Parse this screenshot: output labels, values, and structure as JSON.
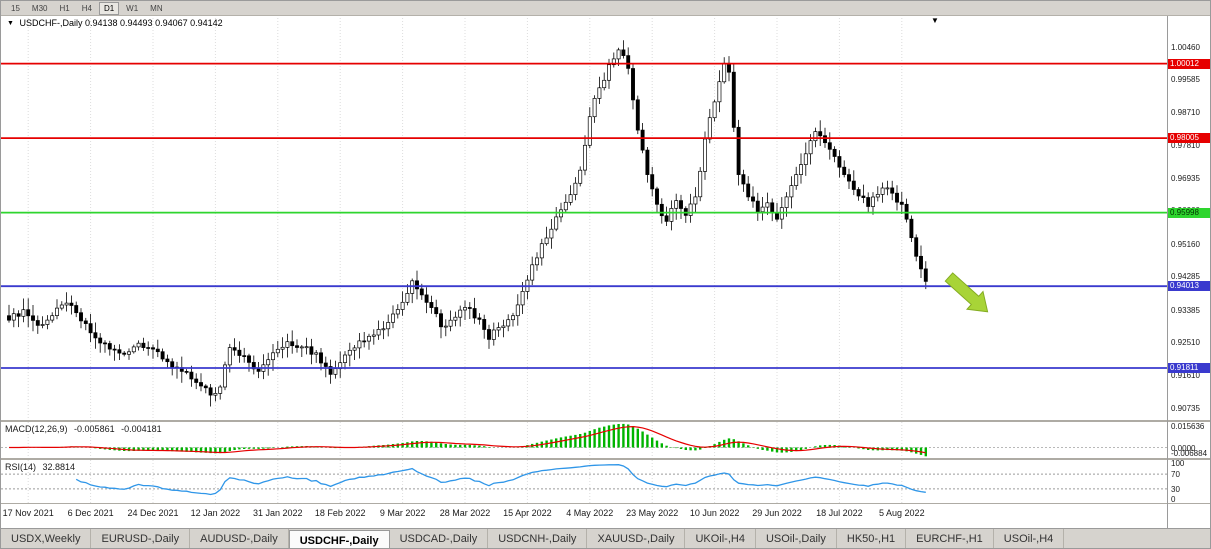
{
  "window": {
    "toolbar": {
      "timeframes": [
        "15",
        "M30",
        "H1",
        "H4",
        "D1",
        "W1",
        "MN"
      ],
      "active_timeframe": "D1"
    },
    "tabs": {
      "items": [
        "USDX,Weekly",
        "EURUSD-,Daily",
        "AUDUSD-,Daily",
        "USDCHF-,Daily",
        "USDCAD-,Daily",
        "USDCNH-,Daily",
        "XAUUSD-,Daily",
        "UKOil-,H4",
        "USOil-,Daily",
        "HK50-,H1",
        "EURCHF-,H1",
        "USOil-,H4"
      ],
      "active": "USDCHF-,Daily"
    }
  },
  "chart": {
    "ohlc_line": {
      "marker": "▼",
      "symbol": "USDCHF-,Daily",
      "open": "0.94138",
      "high": "0.94493",
      "low": "0.94067",
      "close": "0.94142"
    },
    "price_axis": {
      "labels": [
        "1.00460",
        "0.99585",
        "0.98710",
        "0.97810",
        "0.96935",
        "0.96060",
        "0.95160",
        "0.94285",
        "0.93385",
        "0.92510",
        "0.91610",
        "0.90735"
      ]
    },
    "levels": [
      {
        "price": 1.00012,
        "label": "1.00012",
        "color": "#e60000",
        "text_color": "#ffffff"
      },
      {
        "price": 0.98005,
        "label": "0.98005",
        "color": "#e60000",
        "text_color": "#ffffff"
      },
      {
        "price": 0.95998,
        "label": "0.95998",
        "color": "#2ed52e",
        "text_color": "#003300"
      },
      {
        "price": 0.94013,
        "label": "0.94013",
        "color": "#3a3ace",
        "text_color": "#ffffff"
      },
      {
        "price": 0.91811,
        "label": "0.91811",
        "color": "#3a3ace",
        "text_color": "#ffffff"
      }
    ],
    "macd": {
      "label": "MACD(12,26,9)",
      "value_main": "-0.005861",
      "value_signal": "-0.004181",
      "axis_top": "0.015636",
      "axis_zero": "0.0000",
      "axis_bottom": "-0.006884",
      "histogram_color": "#00b400",
      "signal_color": "#e60000"
    },
    "rsi": {
      "label": "RSI(14)",
      "value": "32.8814",
      "axis_labels": [
        "100",
        "70",
        "30",
        "0"
      ],
      "level_lines": [
        70,
        30
      ],
      "line_color": "#2f96e8"
    }
  },
  "chart_data": {
    "type": "candlestick",
    "symbol": "USDCHF",
    "timeframe": "Daily",
    "bars": 192,
    "price_range": [
      0.9041,
      1.0132
    ],
    "dates": [
      "17 Nov 2021",
      "6 Dec 2021",
      "24 Dec 2021",
      "12 Jan 2022",
      "31 Jan 2022",
      "18 Feb 2022",
      "9 Mar 2022",
      "28 Mar 2022",
      "15 Apr 2022",
      "4 May 2022",
      "23 May 2022",
      "10 Jun 2022",
      "29 Jun 2022",
      "18 Jul 2022",
      "5 Aug 2022"
    ],
    "date_tick_bars": [
      4,
      17,
      30,
      43,
      56,
      69,
      82,
      95,
      108,
      121,
      134,
      147,
      160,
      173,
      186
    ],
    "close_anchors": [
      [
        0,
        0.931
      ],
      [
        3,
        0.9338
      ],
      [
        6,
        0.9296
      ],
      [
        9,
        0.9322
      ],
      [
        12,
        0.9356
      ],
      [
        15,
        0.9308
      ],
      [
        18,
        0.9262
      ],
      [
        21,
        0.9232
      ],
      [
        24,
        0.9218
      ],
      [
        27,
        0.9248
      ],
      [
        30,
        0.9232
      ],
      [
        33,
        0.9198
      ],
      [
        36,
        0.9172
      ],
      [
        39,
        0.9142
      ],
      [
        42,
        0.9108
      ],
      [
        44,
        0.913
      ],
      [
        46,
        0.9236
      ],
      [
        49,
        0.9214
      ],
      [
        52,
        0.9172
      ],
      [
        55,
        0.9222
      ],
      [
        58,
        0.9252
      ],
      [
        61,
        0.9238
      ],
      [
        64,
        0.9222
      ],
      [
        67,
        0.9164
      ],
      [
        70,
        0.9216
      ],
      [
        73,
        0.9254
      ],
      [
        76,
        0.927
      ],
      [
        79,
        0.9304
      ],
      [
        82,
        0.9358
      ],
      [
        84,
        0.9416
      ],
      [
        86,
        0.9378
      ],
      [
        88,
        0.9344
      ],
      [
        90,
        0.9292
      ],
      [
        93,
        0.9318
      ],
      [
        95,
        0.9344
      ],
      [
        98,
        0.9312
      ],
      [
        100,
        0.9258
      ],
      [
        102,
        0.929
      ],
      [
        105,
        0.9322
      ],
      [
        108,
        0.9418
      ],
      [
        111,
        0.9516
      ],
      [
        114,
        0.9588
      ],
      [
        117,
        0.9648
      ],
      [
        119,
        0.9714
      ],
      [
        121,
        0.9858
      ],
      [
        123,
        0.9936
      ],
      [
        125,
        0.9998
      ],
      [
        127,
        1.0038
      ],
      [
        129,
        0.9988
      ],
      [
        131,
        0.9822
      ],
      [
        133,
        0.9702
      ],
      [
        135,
        0.9622
      ],
      [
        137,
        0.9576
      ],
      [
        139,
        0.9632
      ],
      [
        141,
        0.9592
      ],
      [
        143,
        0.9642
      ],
      [
        145,
        0.9798
      ],
      [
        147,
        0.9898
      ],
      [
        149,
        1.0002
      ],
      [
        150,
        0.9978
      ],
      [
        152,
        0.9702
      ],
      [
        154,
        0.9642
      ],
      [
        156,
        0.9602
      ],
      [
        158,
        0.9626
      ],
      [
        160,
        0.9582
      ],
      [
        162,
        0.9642
      ],
      [
        164,
        0.9702
      ],
      [
        166,
        0.9758
      ],
      [
        168,
        0.9818
      ],
      [
        170,
        0.9788
      ],
      [
        173,
        0.9722
      ],
      [
        176,
        0.9662
      ],
      [
        179,
        0.9616
      ],
      [
        182,
        0.9666
      ],
      [
        184,
        0.9652
      ],
      [
        186,
        0.9622
      ],
      [
        188,
        0.9532
      ],
      [
        190,
        0.9448
      ],
      [
        191,
        0.94142
      ]
    ],
    "annotations": [
      {
        "type": "arrow",
        "direction": "down-right",
        "color": "#a8d437",
        "near_price": 0.94
      }
    ]
  }
}
